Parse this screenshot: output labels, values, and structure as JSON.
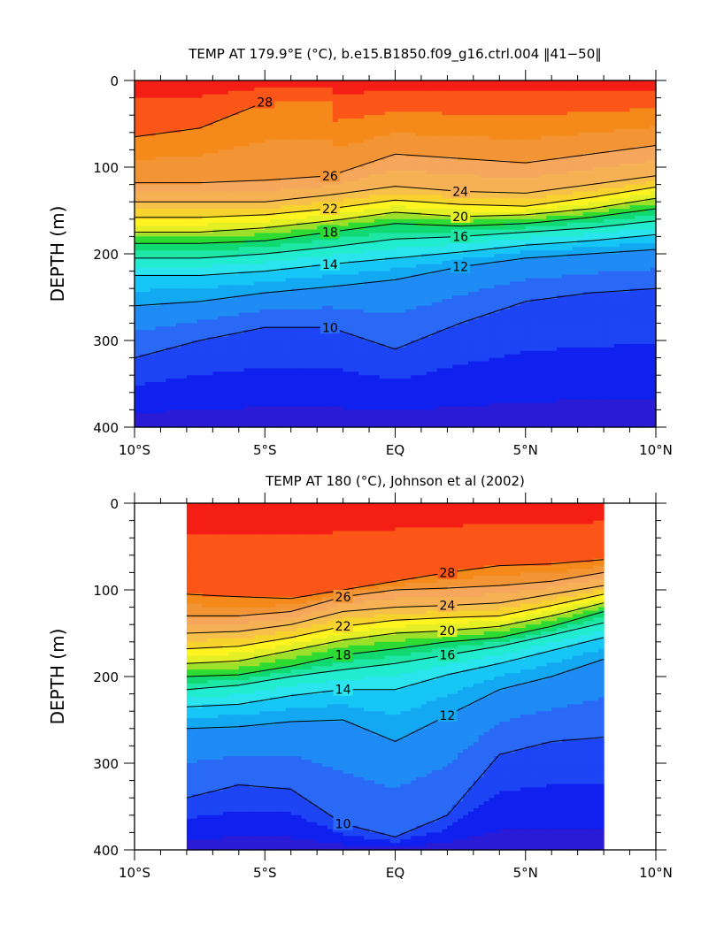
{
  "chart_data": [
    {
      "type": "contour",
      "title": "TEMP AT 179.9°E (°C), b.e15.B1850.f09_g16.ctrl.004 ‖41−50‖",
      "ylabel": "DEPTH (m)",
      "xlabel": "",
      "x_range": [
        -10,
        10
      ],
      "y_range": [
        0,
        400
      ],
      "y_inverted": true,
      "x_tick_labels": [
        "10°S",
        "5°S",
        "EQ",
        "5°N",
        "10°N"
      ],
      "y_tick_labels": [
        "0",
        "100",
        "200",
        "300",
        "400"
      ],
      "contour_interval": 1,
      "labeled_contours": [
        28,
        26,
        24,
        22,
        20,
        18,
        16,
        14,
        12,
        10
      ],
      "isotherm_depths": {
        "lat": [
          -10,
          -7.5,
          -5,
          -2.5,
          0,
          2.5,
          5,
          7.5,
          10
        ],
        "levels": {
          "28": [
            65,
            55,
            25,
            null,
            null,
            null,
            null,
            null,
            null
          ],
          "26": [
            118,
            118,
            115,
            110,
            85,
            90,
            95,
            85,
            75
          ],
          "24": [
            140,
            140,
            140,
            132,
            122,
            128,
            130,
            120,
            110
          ],
          "22": [
            158,
            158,
            155,
            148,
            138,
            143,
            145,
            135,
            123
          ],
          "20": [
            175,
            175,
            170,
            162,
            152,
            157,
            155,
            148,
            136
          ],
          "18": [
            188,
            188,
            185,
            175,
            165,
            168,
            165,
            158,
            148
          ],
          "16": [
            205,
            205,
            200,
            192,
            183,
            180,
            175,
            170,
            162
          ],
          "14": [
            225,
            225,
            220,
            212,
            205,
            198,
            190,
            185,
            178
          ],
          "12": [
            260,
            255,
            245,
            238,
            230,
            215,
            205,
            200,
            195
          ],
          "10": [
            320,
            300,
            285,
            285,
            310,
            280,
            255,
            245,
            240
          ]
        }
      }
    },
    {
      "type": "contour",
      "title": "TEMP AT 180 (°C), Johnson et al (2002)",
      "ylabel": "DEPTH (m)",
      "xlabel": "",
      "x_range": [
        -10,
        10
      ],
      "y_range": [
        0,
        400
      ],
      "y_inverted": true,
      "data_lat_extent": [
        -8,
        8
      ],
      "x_tick_labels": [
        "10°S",
        "5°S",
        "EQ",
        "5°N",
        "10°N"
      ],
      "y_tick_labels": [
        "0",
        "100",
        "200",
        "300",
        "400"
      ],
      "contour_interval": 1,
      "labeled_contours": [
        28,
        26,
        24,
        22,
        20,
        18,
        16,
        14,
        12,
        10
      ],
      "isotherm_depths": {
        "lat": [
          -8,
          -6,
          -4,
          -2,
          0,
          2,
          4,
          6,
          8
        ],
        "levels": {
          "28": [
            105,
            108,
            110,
            100,
            90,
            80,
            72,
            70,
            65
          ],
          "26": [
            130,
            130,
            125,
            108,
            100,
            98,
            95,
            90,
            80
          ],
          "24": [
            150,
            148,
            140,
            125,
            120,
            118,
            115,
            105,
            95
          ],
          "22": [
            168,
            165,
            155,
            142,
            135,
            132,
            130,
            118,
            105
          ],
          "20": [
            185,
            182,
            170,
            158,
            150,
            147,
            142,
            130,
            115
          ],
          "18": [
            200,
            198,
            188,
            175,
            168,
            160,
            155,
            142,
            125
          ],
          "16": [
            215,
            210,
            200,
            192,
            185,
            175,
            165,
            152,
            138
          ],
          "14": [
            235,
            232,
            222,
            215,
            215,
            198,
            185,
            170,
            155
          ],
          "12": [
            260,
            258,
            252,
            250,
            275,
            245,
            215,
            200,
            180
          ],
          "10": [
            340,
            325,
            330,
            370,
            385,
            360,
            290,
            275,
            270
          ]
        }
      }
    }
  ]
}
